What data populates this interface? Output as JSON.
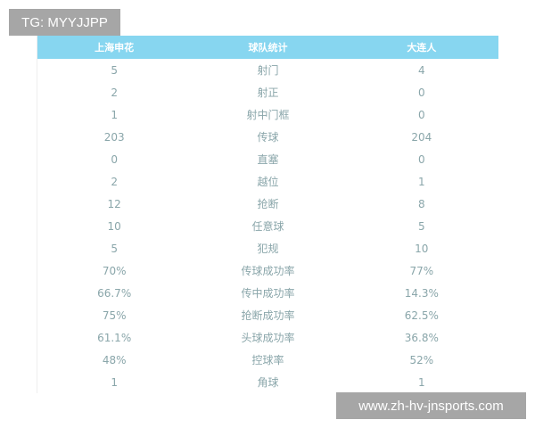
{
  "watermarks": {
    "top": "TG: MYYJJPP",
    "bottom": "www.zh-hv-jnsports.com"
  },
  "colors": {
    "header_bg": "#87d6f0",
    "header_text": "#ffffff",
    "cell_text": "#8aa6aa"
  },
  "table": {
    "headers": [
      "上海申花",
      "球队统计",
      "大连人"
    ],
    "rows": [
      [
        "5",
        "射门",
        "4"
      ],
      [
        "2",
        "射正",
        "0"
      ],
      [
        "1",
        "射中门框",
        "0"
      ],
      [
        "203",
        "传球",
        "204"
      ],
      [
        "0",
        "直塞",
        "0"
      ],
      [
        "2",
        "越位",
        "1"
      ],
      [
        "12",
        "抢断",
        "8"
      ],
      [
        "10",
        "任意球",
        "5"
      ],
      [
        "5",
        "犯规",
        "10"
      ],
      [
        "70%",
        "传球成功率",
        "77%"
      ],
      [
        "66.7%",
        "传中成功率",
        "14.3%"
      ],
      [
        "75%",
        "抢断成功率",
        "62.5%"
      ],
      [
        "61.1%",
        "头球成功率",
        "36.8%"
      ],
      [
        "48%",
        "控球率",
        "52%"
      ],
      [
        "1",
        "角球",
        "1"
      ]
    ]
  }
}
